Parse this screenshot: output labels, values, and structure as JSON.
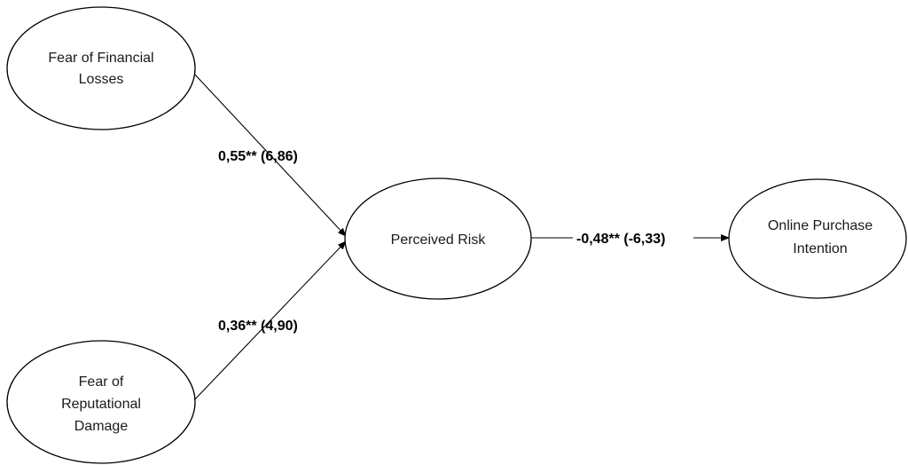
{
  "nodes": {
    "fear_financial": {
      "lines": [
        "Fear of Financial",
        "Losses"
      ]
    },
    "fear_reputational": {
      "lines": [
        "Fear of",
        "Reputational",
        "Damage"
      ]
    },
    "perceived_risk": {
      "lines": [
        "Perceived Risk"
      ]
    },
    "purchase_intention": {
      "lines": [
        "Online Purchase",
        "Intention"
      ]
    }
  },
  "edges": {
    "financial_to_risk": {
      "label": "0,55** (6,86)"
    },
    "reputational_to_risk": {
      "label": "0,36** (4,90)"
    },
    "risk_to_intention": {
      "label": "-0,48** (-6,33)"
    }
  },
  "colors": {
    "stroke": "#000000",
    "text": "#1a1a1a",
    "background": "#ffffff"
  }
}
